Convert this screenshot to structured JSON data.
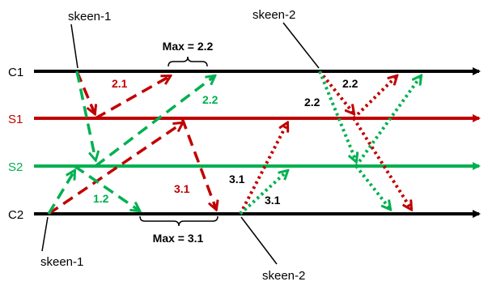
{
  "colors": {
    "black": "#000000",
    "red": "#c00000",
    "green": "#00b050",
    "text_red": "#c00000",
    "text_green": "#00b050"
  },
  "lanes": [
    {
      "id": "c1",
      "label": "C1",
      "color": "#000000",
      "label_color": "#000000"
    },
    {
      "id": "s1",
      "label": "S1",
      "color": "#c00000",
      "label_color": "#c00000"
    },
    {
      "id": "s2",
      "label": "S2",
      "color": "#00b050",
      "label_color": "#00b050"
    },
    {
      "id": "c2",
      "label": "C2",
      "color": "#000000",
      "label_color": "#000000"
    }
  ],
  "callouts": {
    "skeen1_top": "skeen-1",
    "skeen2_top": "skeen-2",
    "skeen1_bottom": "skeen-1",
    "skeen2_bottom": "skeen-2"
  },
  "max_labels": {
    "top": "Max = 2.2",
    "bottom": "Max = 3.1"
  },
  "values": {
    "r21": "2.1",
    "g22": "2.2",
    "g12": "1.2",
    "r31": "3.1",
    "k31a": "3.1",
    "k31b": "3.1",
    "k22a": "2.2",
    "k22b": "2.2"
  }
}
